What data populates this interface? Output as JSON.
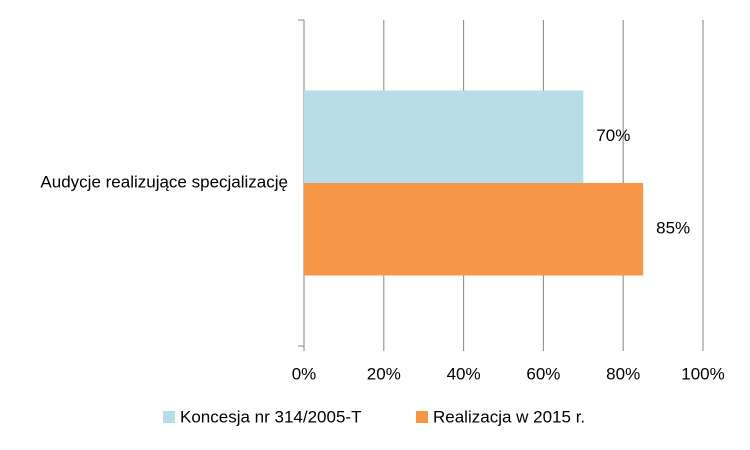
{
  "chart_data": {
    "type": "bar",
    "orientation": "horizontal",
    "categories": [
      "Audycje realizujące specjalizację"
    ],
    "series": [
      {
        "name": "Koncesja nr 314/2005-T",
        "color": "#b7dde8",
        "values": [
          70
        ],
        "value_labels": [
          "70%"
        ]
      },
      {
        "name": "Realizacja w 2015 r.",
        "color": "#f79646",
        "values": [
          85
        ],
        "value_labels": [
          "85%"
        ]
      }
    ],
    "xlim": [
      0,
      100
    ],
    "xticks": [
      {
        "value": 0,
        "label": "0%"
      },
      {
        "value": 20,
        "label": "20%"
      },
      {
        "value": 40,
        "label": "40%"
      },
      {
        "value": 60,
        "label": "60%"
      },
      {
        "value": 80,
        "label": "80%"
      },
      {
        "value": 100,
        "label": "100%"
      }
    ],
    "grid": true,
    "legend": "bottom"
  }
}
